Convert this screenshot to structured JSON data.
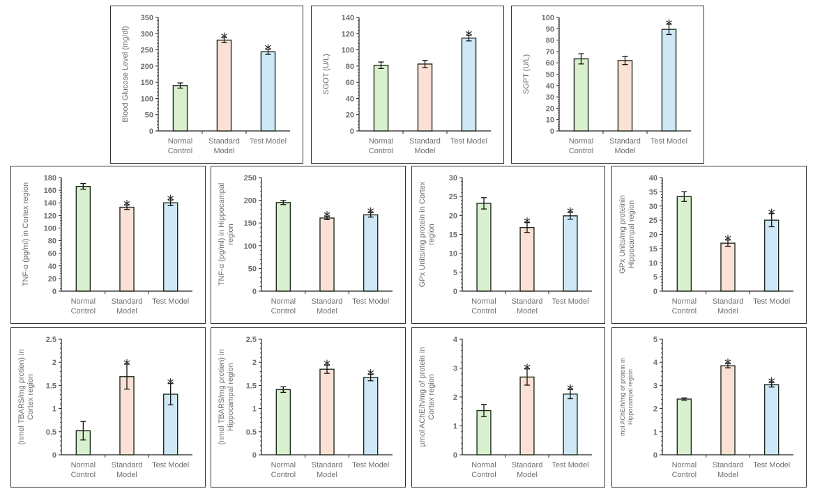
{
  "figure": {
    "colors": {
      "Normal Control": "#d9f0cf",
      "Standard Model": "#fbe1d5",
      "Test Model": "#cfe8f7",
      "bar_edge": "#1e2a1e",
      "axis": "#222222",
      "text": "#6e6e6e"
    }
  },
  "chart_data": [
    {
      "id": "blood-glucose",
      "type": "bar",
      "title": "",
      "xlabel": "",
      "ylabel": "Blood Glucose Level (mg/dl)",
      "categories": [
        "Normal Control",
        "Standard Model",
        "Test Model"
      ],
      "category_lines": [
        [
          "Normal",
          "Control"
        ],
        [
          "Standard",
          "Model"
        ],
        [
          "Test Model"
        ]
      ],
      "values": [
        140,
        280,
        244
      ],
      "errors": [
        8,
        8,
        8
      ],
      "significant": [
        false,
        true,
        true
      ],
      "ylim": [
        0,
        350
      ],
      "yticks": [
        0,
        50,
        100,
        150,
        200,
        250,
        300,
        350
      ],
      "grid": false
    },
    {
      "id": "sgot",
      "type": "bar",
      "title": "",
      "xlabel": "",
      "ylabel": "SGOT (U/L)",
      "categories": [
        "Normal Control",
        "Standard Model",
        "Test Model"
      ],
      "category_lines": [
        [
          "Normal",
          "Control"
        ],
        [
          "Standard",
          "Model"
        ],
        [
          "Test Model"
        ]
      ],
      "values": [
        81,
        82.5,
        114.5
      ],
      "errors": [
        4,
        4.5,
        3.5
      ],
      "significant": [
        false,
        false,
        true
      ],
      "ylim": [
        0,
        140
      ],
      "yticks": [
        0,
        20,
        40,
        60,
        80,
        100,
        120,
        140
      ],
      "grid": false
    },
    {
      "id": "sgpt",
      "type": "bar",
      "title": "",
      "xlabel": "",
      "ylabel": "SGPT (U/L)",
      "categories": [
        "Normal Control",
        "Standard Model",
        "Test Model"
      ],
      "category_lines": [
        [
          "Normal",
          "Control"
        ],
        [
          "Standard",
          "Model"
        ],
        [
          "Test Model"
        ]
      ],
      "values": [
        63.5,
        62,
        89.5
      ],
      "errors": [
        4.5,
        3.5,
        4.5
      ],
      "significant": [
        false,
        false,
        true
      ],
      "ylim": [
        0,
        100
      ],
      "yticks": [
        0,
        10,
        20,
        30,
        40,
        50,
        60,
        70,
        80,
        90,
        100
      ],
      "grid": false
    },
    {
      "id": "tnf-cortex",
      "type": "bar",
      "title": "",
      "xlabel": "",
      "ylabel": "TNF-α (pg/ml) in Cortex region",
      "categories": [
        "Normal Control",
        "Standard Model",
        "Test Model"
      ],
      "category_lines": [
        [
          "Normal",
          "Control"
        ],
        [
          "Standard",
          "Model"
        ],
        [
          "Test Model"
        ]
      ],
      "values": [
        166,
        133,
        140
      ],
      "errors": [
        4.5,
        3.5,
        4.5
      ],
      "significant": [
        false,
        true,
        true
      ],
      "ylim": [
        0,
        180
      ],
      "yticks": [
        0,
        20,
        40,
        60,
        80,
        100,
        120,
        140,
        160,
        180
      ],
      "grid": false
    },
    {
      "id": "tnf-hippocampal",
      "type": "bar",
      "title": "",
      "xlabel": "",
      "ylabel": "TNF-α (pg/ml) in Hippocampal region",
      "ylabel_lines": [
        "TNF-α (pg/ml) in Hippocampal",
        "region"
      ],
      "categories": [
        "Normal Control",
        "Standard Model",
        "Test Model"
      ],
      "category_lines": [
        [
          "Normal",
          "Control"
        ],
        [
          "Standard",
          "Model"
        ],
        [
          "Test Model"
        ]
      ],
      "values": [
        195,
        161,
        168
      ],
      "errors": [
        4.5,
        3.5,
        5
      ],
      "significant": [
        false,
        true,
        true
      ],
      "ylim": [
        0,
        250
      ],
      "yticks": [
        0,
        50,
        100,
        150,
        200,
        250
      ],
      "grid": false
    },
    {
      "id": "gpx-cortex",
      "type": "bar",
      "title": "",
      "xlabel": "",
      "ylabel": "GPx Units/mg protein in Cortex region",
      "ylabel_lines": [
        "GPx Units/mg protein in Cortex",
        "region"
      ],
      "categories": [
        "Normal Control",
        "Standard Model",
        "Test Model"
      ],
      "category_lines": [
        [
          "Normal",
          "Control"
        ],
        [
          "Standard",
          "Model"
        ],
        [
          "Test Model"
        ]
      ],
      "values": [
        23.2,
        16.8,
        19.9
      ],
      "errors": [
        1.5,
        1.3,
        0.9
      ],
      "significant": [
        false,
        true,
        true
      ],
      "ylim": [
        0,
        30
      ],
      "yticks": [
        0,
        5,
        10,
        15,
        20,
        25,
        30
      ],
      "grid": false
    },
    {
      "id": "gpx-hippocampal",
      "type": "bar",
      "title": "",
      "xlabel": "",
      "ylabel": "GPx Units/mg protein in Hippocampal region",
      "ylabel_lines": [
        "GPx Units/mg proteinin",
        "Hippocampal region"
      ],
      "categories": [
        "Normal Control",
        "Standard Model",
        "Test Model"
      ],
      "category_lines": [
        [
          "Normal",
          "Control"
        ],
        [
          "Standard",
          "Model"
        ],
        [
          "Test Model"
        ]
      ],
      "values": [
        33.3,
        16.9,
        25
      ],
      "errors": [
        1.7,
        1.1,
        2.3
      ],
      "significant": [
        false,
        true,
        true
      ],
      "ylim": [
        0,
        40
      ],
      "yticks": [
        0,
        5,
        10,
        15,
        20,
        25,
        30,
        35,
        40
      ],
      "grid": false
    },
    {
      "id": "tbars-cortex",
      "type": "bar",
      "title": "",
      "xlabel": "",
      "ylabel": "(nmol TBARS/mg protien) in Cortex region",
      "ylabel_lines": [
        "(nmol TBARS/mg protien) in",
        "Cortex region"
      ],
      "categories": [
        "Normal Control",
        "Standard Model",
        "Test Model"
      ],
      "category_lines": [
        [
          "Normal",
          "Control"
        ],
        [
          "Standard",
          "Model"
        ],
        [
          "Test Model"
        ]
      ],
      "values": [
        0.52,
        1.69,
        1.31
      ],
      "errors": [
        0.2,
        0.27,
        0.23
      ],
      "significant": [
        false,
        true,
        true
      ],
      "ylim": [
        0,
        2.5
      ],
      "yticks": [
        0,
        0.5,
        1,
        1.5,
        2,
        2.5
      ],
      "grid": false
    },
    {
      "id": "tbars-hippocampal",
      "type": "bar",
      "title": "",
      "xlabel": "",
      "ylabel": "(nmol TBARS/mg protien) in Hippocampal region",
      "ylabel_lines": [
        "(nmol TBARS/mg protien) in",
        "Hippocampal region"
      ],
      "categories": [
        "Normal Control",
        "Standard Model",
        "Test Model"
      ],
      "category_lines": [
        [
          "Normal",
          "Control"
        ],
        [
          "Standard",
          "Model"
        ],
        [
          "Test Model"
        ]
      ],
      "values": [
        1.41,
        1.85,
        1.67
      ],
      "errors": [
        0.06,
        0.09,
        0.07
      ],
      "significant": [
        false,
        true,
        true
      ],
      "ylim": [
        0,
        2.5
      ],
      "yticks": [
        0,
        0.5,
        1,
        1.5,
        2,
        2.5
      ],
      "grid": false
    },
    {
      "id": "ache-cortex",
      "type": "bar",
      "title": "",
      "xlabel": "",
      "ylabel": "µmol AChE/h/mg of protein in Cortex region",
      "ylabel_lines": [
        "µmol AChE/h/mg of protein in",
        "Cortex region"
      ],
      "categories": [
        "Normal Control",
        "Standard Model",
        "Test Model"
      ],
      "category_lines": [
        [
          "Normal",
          "Control"
        ],
        [
          "Standard",
          "Model"
        ],
        [
          "Test Model"
        ]
      ],
      "values": [
        1.53,
        2.69,
        2.1
      ],
      "errors": [
        0.21,
        0.28,
        0.16
      ],
      "significant": [
        false,
        true,
        true
      ],
      "ylim": [
        0,
        4
      ],
      "yticks": [
        0,
        1,
        2,
        3,
        4
      ],
      "grid": false
    },
    {
      "id": "ache-hippocampal",
      "type": "bar",
      "title": "",
      "xlabel": "",
      "ylabel": "mol AChE/h/mg of protein in Hippocampal region",
      "ylabel_lines": [
        "mol AChE/h/mg of protein in",
        "Hippocampal region"
      ],
      "categories": [
        "Normal Control",
        "Standard Model",
        "Test Model"
      ],
      "category_lines": [
        [
          "Normal",
          "Control"
        ],
        [
          "Standard",
          "Model"
        ],
        [
          "Test Model"
        ]
      ],
      "values": [
        2.41,
        3.85,
        3.03
      ],
      "errors": [
        0.05,
        0.09,
        0.1
      ],
      "significant": [
        false,
        true,
        true
      ],
      "ylim": [
        0,
        5
      ],
      "yticks": [
        0,
        1,
        2,
        3,
        4,
        5
      ],
      "grid": false
    }
  ]
}
